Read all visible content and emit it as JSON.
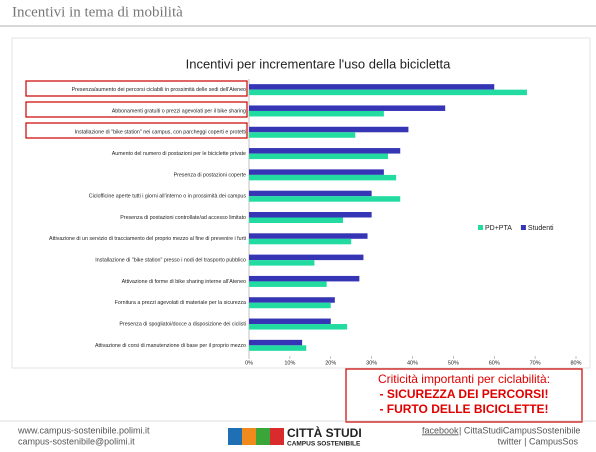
{
  "header": {
    "title": "Incentivi in tema di mobilità"
  },
  "chart_data": {
    "type": "hbar",
    "title": "Incentivi per incrementare l'uso della bicicletta",
    "categories": [
      "Presenza/aumento dei percorsi ciclabili in prossimità delle sedi dell'Ateneo",
      "Abbonamenti gratuiti o prezzi agevolati per il bike sharing",
      "Installazione di \"bike station\" nei campus, con parcheggi coperti e protetti",
      "Aumento del numero di postazioni per le biciclette private",
      "Presenza di postazioni coperte",
      "Ciclofficine aperte tutti i giorni all'interno o in prossimità dei campus",
      "Presenza di postazioni controllate/ad accesso limitato",
      "Attivazione di un servizio di tracciamento del proprio mezzo al fine di prevenire i furti",
      "Installazione di \"bike station\" presso i nodi del trasporto pubblico",
      "Attivazione di forme di bike sharing interne all'Ateneo",
      "Fornitura a prezzi agevolati di materiale per la sicurezza",
      "Presenza di spogliatoi/docce a disposizione dei ciclisti",
      "Attivazione di corsi di manutenzione di base per il proprio mezzo"
    ],
    "series": [
      {
        "name": "PD+PTA",
        "color": "#22dba0",
        "values": [
          68,
          33,
          26,
          34,
          36,
          37,
          23,
          25,
          16,
          19,
          20,
          24,
          14
        ]
      },
      {
        "name": "Studenti",
        "color": "#3535b5",
        "values": [
          60,
          48,
          39,
          37,
          33,
          30,
          30,
          29,
          28,
          27,
          21,
          20,
          13
        ]
      }
    ],
    "xlim": [
      0,
      80
    ],
    "xticks": [
      {
        "value": 0,
        "label": "0%"
      },
      {
        "value": 10,
        "label": "10%"
      },
      {
        "value": 20,
        "label": "20%"
      },
      {
        "value": 30,
        "label": "30%"
      },
      {
        "value": 40,
        "label": "40%"
      },
      {
        "value": 50,
        "label": "50%"
      },
      {
        "value": 60,
        "label": "60%"
      },
      {
        "value": 70,
        "label": "70%"
      },
      {
        "value": 80,
        "label": "80%"
      }
    ],
    "legend": "right"
  },
  "callout": {
    "lines": [
      "Criticità importanti per ciclabilità:",
      "- SICUREZZA DEI PERCORSI!",
      "- FURTO DELLE BICICLETTE!"
    ]
  },
  "footer": {
    "website": "www.campus-sostenibile.polimi.it",
    "email": "campus-sostenibile@polimi.it",
    "logo_title": "CITTÀ STUDI",
    "logo_subtitle": "CAMPUS SOSTENIBILE",
    "facebook_label": "facebook",
    "facebook_text": " | CittaStudiCampusSostenibile",
    "twitter": "twitter | CampusSos"
  }
}
